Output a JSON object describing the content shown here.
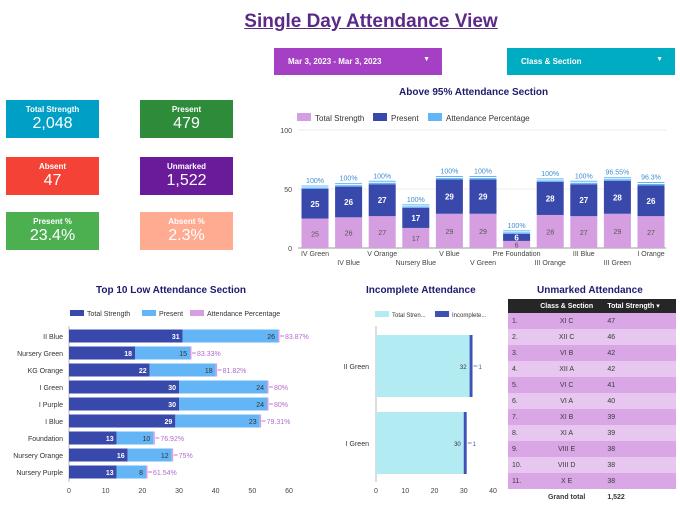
{
  "header": {
    "title": "Single Day Attendance View"
  },
  "filters": {
    "date_range": "Mar 3, 2023 - Mar 3, 2023",
    "class_section": "Class & Section"
  },
  "cards": [
    {
      "label": "Total Strength",
      "value": "2,048",
      "color": "#00a0c6"
    },
    {
      "label": "Present",
      "value": "479",
      "color": "#2e8b3a"
    },
    {
      "label": "Absent",
      "value": "47",
      "color": "#f44336"
    },
    {
      "label": "Unmarked",
      "value": "1,522",
      "color": "#6a1b9a"
    },
    {
      "label": "Present %",
      "value": "23.4%",
      "color": "#4caf50"
    },
    {
      "label": "Absent %",
      "value": "2.3%",
      "color": "#ffab91"
    }
  ],
  "colors": {
    "total": "#d59ee0",
    "present": "#3949ab",
    "pct": "#64b5f6",
    "top10_total": "#3949ab",
    "top10_present": "#64b5f6",
    "top10_pct": "#d59ee0",
    "inc_total": "#b2ebf2",
    "inc_incomplete": "#3f51b5"
  },
  "chart_data": [
    {
      "id": "above95",
      "type": "bar",
      "title": "Above 95% Attendance Section",
      "legend": [
        "Total Strength",
        "Present",
        "Attendance Percentage"
      ],
      "categories": [
        "IV Green",
        "IV Blue",
        "V Orange",
        "Nursery Blue",
        "V Blue",
        "V Green",
        "Pre Foundation",
        "III Orange",
        "III Blue",
        "III Green",
        "I Orange"
      ],
      "series": [
        {
          "name": "Total Strength",
          "values": [
            25,
            26,
            27,
            17,
            29,
            29,
            6,
            28,
            27,
            29,
            27
          ]
        },
        {
          "name": "Present",
          "values": [
            25,
            26,
            27,
            17,
            29,
            29,
            6,
            28,
            27,
            28,
            26
          ]
        }
      ],
      "pct_labels": [
        "100%",
        "100%",
        "100%",
        "100%",
        "100%",
        "100%",
        "100%",
        "100%",
        "100%",
        "96.55%",
        "96.3%"
      ],
      "yticks": [
        "0",
        "50",
        "100"
      ],
      "ylim": [
        0,
        100
      ]
    },
    {
      "id": "top10",
      "type": "bar",
      "orientation": "horizontal",
      "title": "Top 10 Low Attendance Section",
      "legend": [
        "Total Strength",
        "Present",
        "Attendance Percentage"
      ],
      "categories": [
        "II Blue",
        "Nursery Green",
        "KG Orange",
        "I Green",
        "I Purple",
        "I Blue",
        "Foundation",
        "Nursery Orange",
        "Nursery Purple"
      ],
      "series": [
        {
          "name": "Total Strength",
          "values": [
            31,
            18,
            22,
            30,
            30,
            29,
            13,
            16,
            13
          ]
        },
        {
          "name": "Present",
          "values": [
            26,
            15,
            18,
            24,
            24,
            23,
            10,
            12,
            8
          ]
        }
      ],
      "pct_labels": [
        "83.87%",
        "83.33%",
        "81.82%",
        "80%",
        "80%",
        "79.31%",
        "76.92%",
        "75%",
        "61.54%"
      ],
      "xticks": [
        "0",
        "10",
        "20",
        "30",
        "40",
        "50",
        "60"
      ],
      "xlim": [
        0,
        60
      ]
    },
    {
      "id": "incomplete",
      "type": "bar",
      "orientation": "horizontal",
      "title": "Incomplete Attendance",
      "legend": [
        "Total Stren...",
        "Incomplete..."
      ],
      "categories": [
        "II Green",
        "I Green"
      ],
      "series": [
        {
          "name": "Total Strength",
          "values": [
            32,
            30
          ]
        },
        {
          "name": "Incomplete",
          "values": [
            1,
            1
          ]
        }
      ],
      "xticks": [
        "0",
        "10",
        "20",
        "30",
        "40"
      ],
      "xlim": [
        0,
        40
      ]
    },
    {
      "id": "unmarked",
      "type": "table",
      "title": "Unmarked Attendance",
      "columns": [
        "Class & Section",
        "Total Strength"
      ],
      "rows": [
        [
          "1.",
          "XI C",
          "47"
        ],
        [
          "2.",
          "XII C",
          "46"
        ],
        [
          "3.",
          "VI B",
          "42"
        ],
        [
          "4.",
          "XII A",
          "42"
        ],
        [
          "5.",
          "VI C",
          "41"
        ],
        [
          "6.",
          "VI A",
          "40"
        ],
        [
          "7.",
          "XI B",
          "39"
        ],
        [
          "8.",
          "XI A",
          "39"
        ],
        [
          "9.",
          "VIII E",
          "38"
        ],
        [
          "10.",
          "VIII D",
          "38"
        ],
        [
          "11.",
          "X E",
          "38"
        ]
      ],
      "grand_total_label": "Grand total",
      "grand_total": "1,522"
    }
  ]
}
